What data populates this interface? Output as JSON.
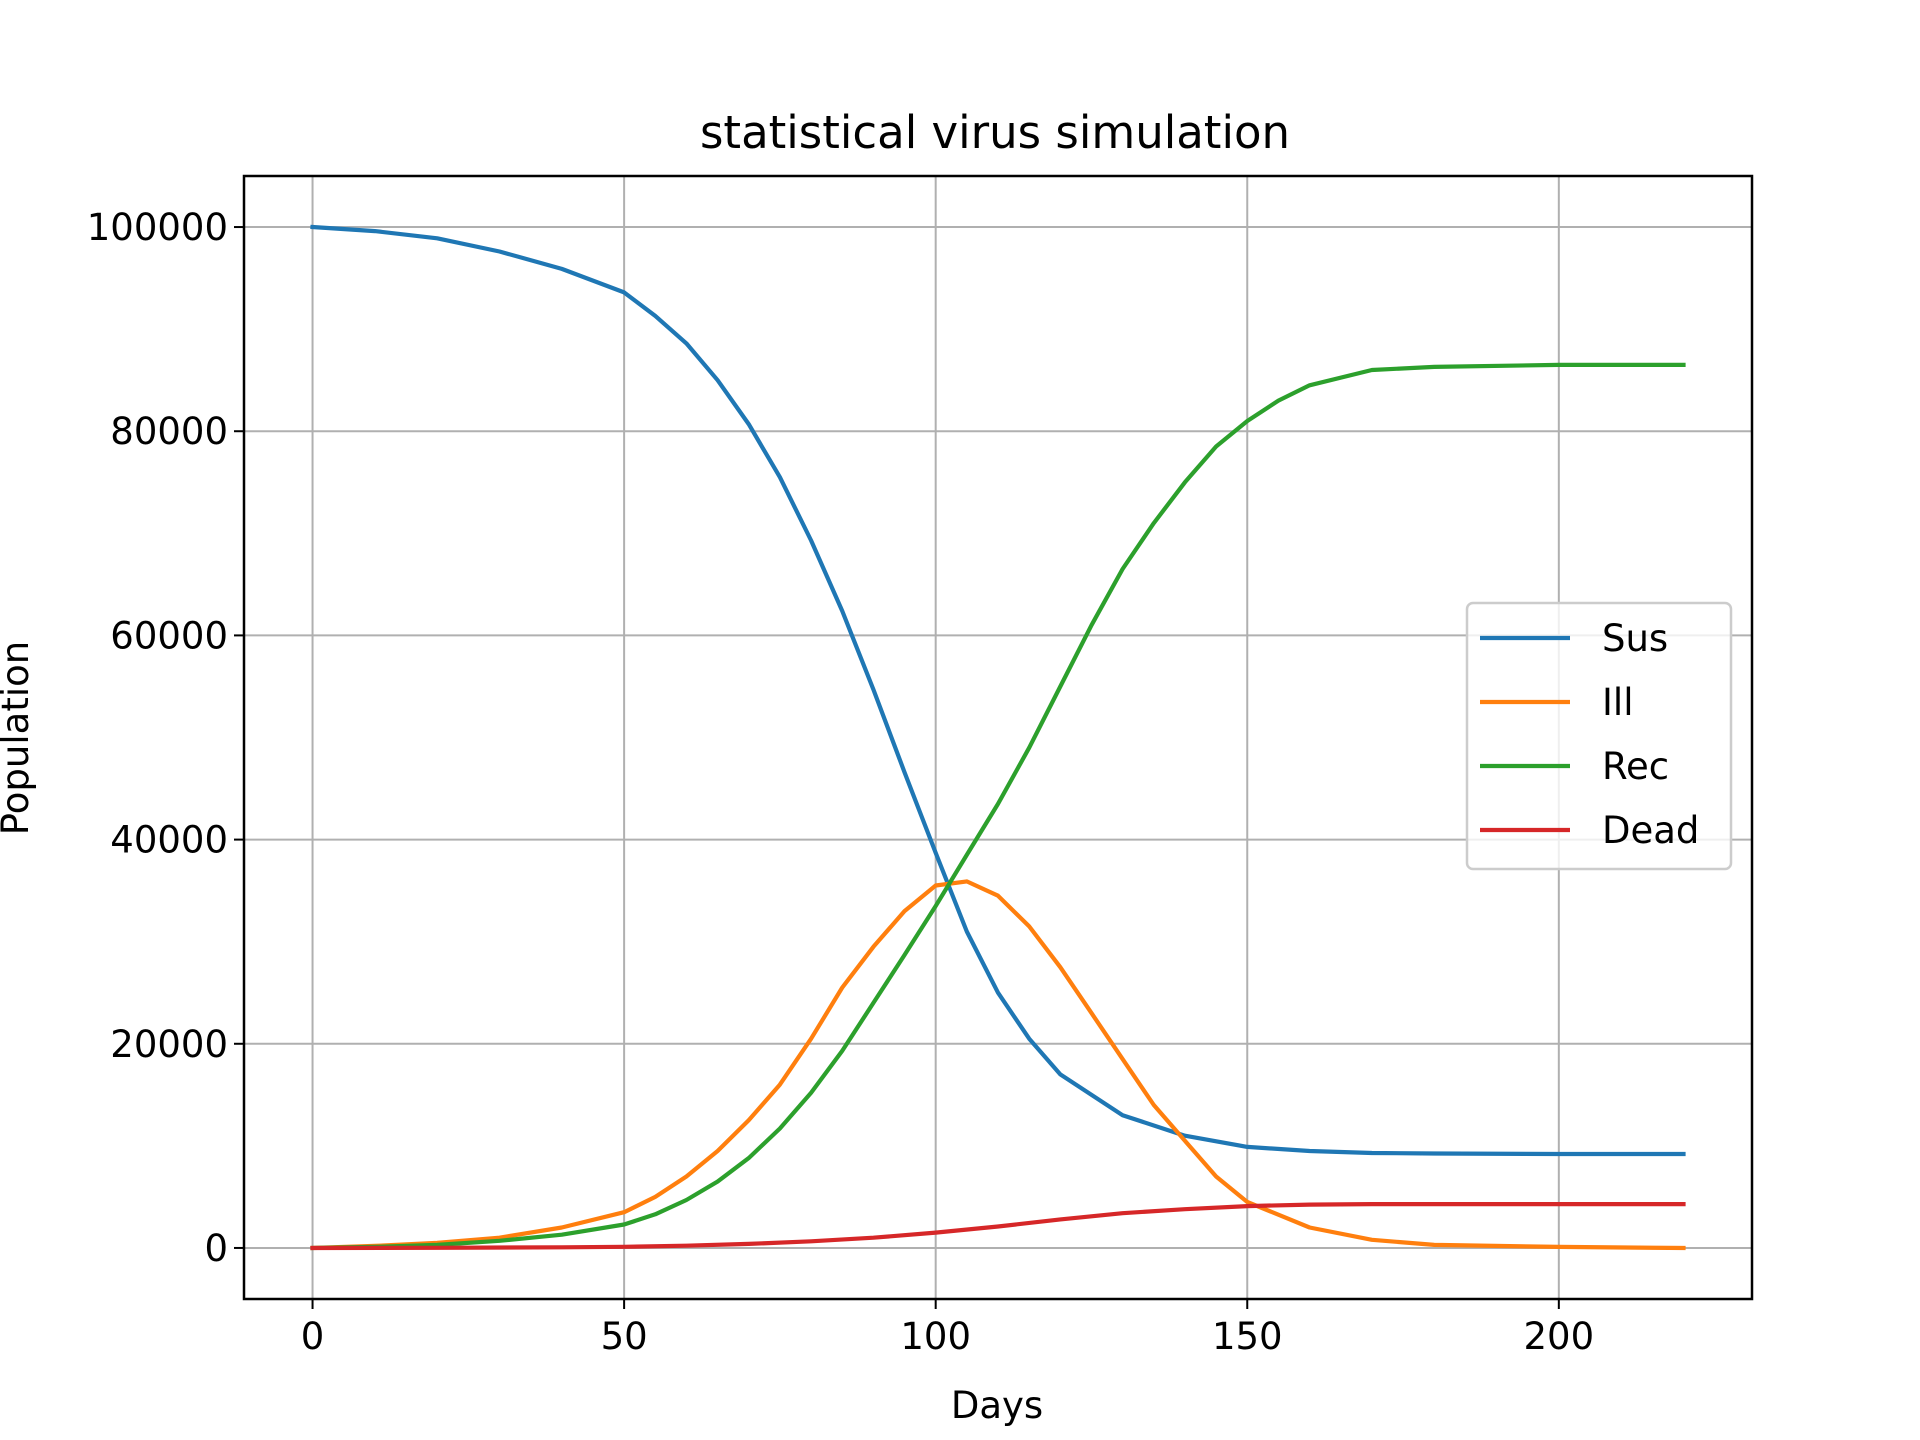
{
  "chart_data": {
    "type": "line",
    "title": "statistical virus simulation",
    "xlabel": "Days",
    "ylabel": "Population",
    "xlim": [
      -11,
      231
    ],
    "ylim": [
      -5000,
      105000
    ],
    "x_ticks": [
      0,
      50,
      100,
      150,
      200
    ],
    "y_ticks": [
      0,
      20000,
      40000,
      60000,
      80000,
      100000
    ],
    "grid": true,
    "legend_position": "center-right",
    "series": [
      {
        "name": "Sus",
        "color": "#1f77b4",
        "x": [
          0,
          10,
          20,
          30,
          40,
          50,
          55,
          60,
          65,
          70,
          75,
          80,
          85,
          90,
          95,
          100,
          105,
          110,
          115,
          120,
          130,
          140,
          150,
          160,
          170,
          180,
          200,
          220
        ],
        "y": [
          100000,
          99600,
          98900,
          97600,
          95900,
          93600,
          91300,
          88600,
          85000,
          80700,
          75500,
          69300,
          62400,
          54700,
          46600,
          38700,
          31000,
          25000,
          20500,
          17000,
          13000,
          11000,
          9900,
          9500,
          9300,
          9250,
          9200,
          9200
        ]
      },
      {
        "name": "Ill",
        "color": "#ff7f0e",
        "x": [
          0,
          10,
          20,
          30,
          40,
          50,
          55,
          60,
          65,
          70,
          75,
          80,
          85,
          90,
          95,
          100,
          105,
          110,
          115,
          120,
          125,
          130,
          135,
          140,
          145,
          150,
          160,
          170,
          180,
          200,
          220
        ],
        "y": [
          0,
          200,
          500,
          1000,
          2000,
          3500,
          5000,
          7000,
          9500,
          12500,
          16000,
          20500,
          25500,
          29500,
          33000,
          35500,
          35900,
          34500,
          31500,
          27500,
          23000,
          18500,
          14000,
          10500,
          7000,
          4500,
          2000,
          800,
          300,
          100,
          0
        ]
      },
      {
        "name": "Rec",
        "color": "#2ca02c",
        "x": [
          0,
          10,
          20,
          30,
          40,
          50,
          55,
          60,
          65,
          70,
          75,
          80,
          85,
          90,
          95,
          100,
          105,
          110,
          115,
          120,
          125,
          130,
          135,
          140,
          145,
          150,
          155,
          160,
          170,
          180,
          200,
          220
        ],
        "y": [
          0,
          100,
          300,
          700,
          1300,
          2300,
          3300,
          4700,
          6500,
          8800,
          11700,
          15200,
          19300,
          24000,
          28700,
          33500,
          38500,
          43500,
          49000,
          55000,
          61000,
          66500,
          71000,
          75000,
          78500,
          81000,
          83000,
          84500,
          86000,
          86300,
          86500,
          86500
        ]
      },
      {
        "name": "Dead",
        "color": "#d62728",
        "x": [
          0,
          20,
          40,
          50,
          60,
          70,
          80,
          90,
          100,
          110,
          120,
          130,
          140,
          150,
          160,
          170,
          180,
          200,
          220
        ],
        "y": [
          0,
          20,
          60,
          110,
          220,
          400,
          650,
          1000,
          1500,
          2100,
          2800,
          3400,
          3800,
          4100,
          4250,
          4300,
          4300,
          4300,
          4300
        ]
      }
    ]
  }
}
